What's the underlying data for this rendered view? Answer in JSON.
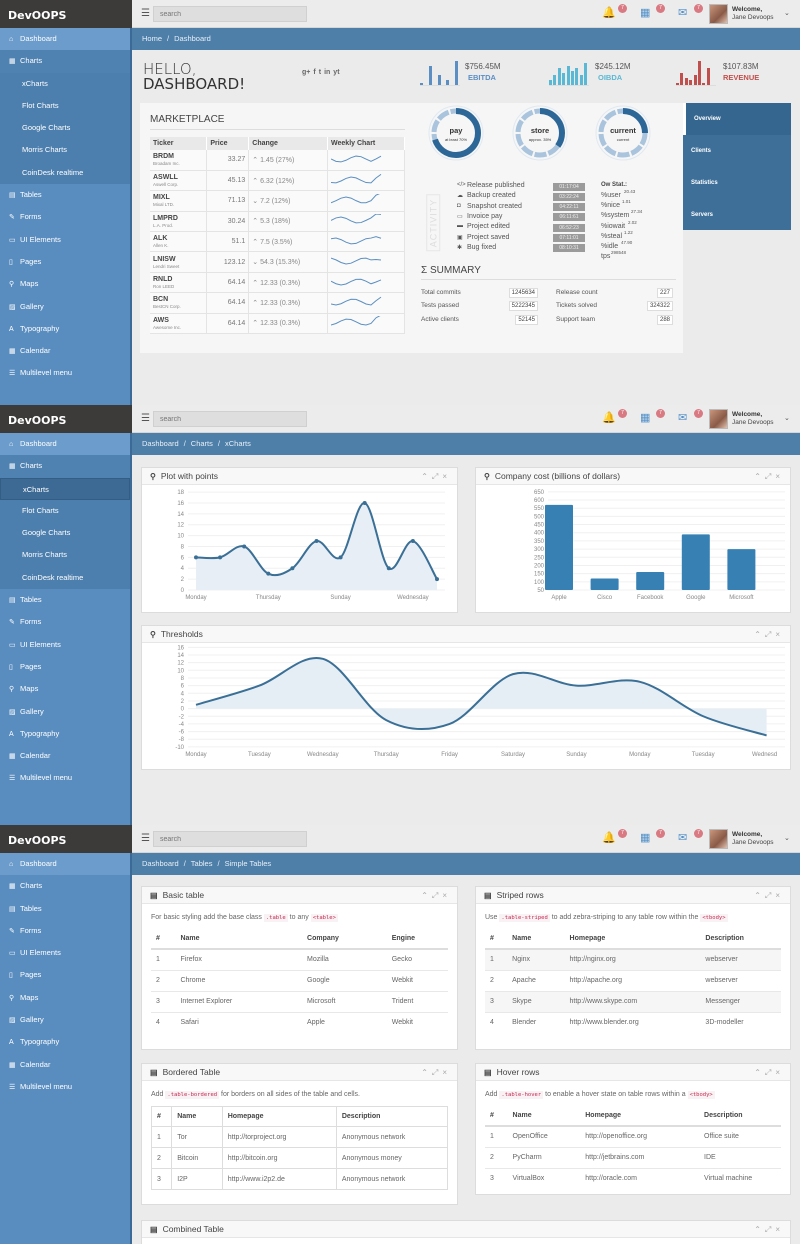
{
  "app": {
    "logo": "DevOOPS"
  },
  "header": {
    "search_placeholder": "search",
    "badges": {
      "notifications": "7",
      "calendar": "7",
      "messages": "7"
    },
    "welcome": "Welcome,",
    "user": "Jane Devoops"
  },
  "sidebar": {
    "items": [
      {
        "label": "Dashboard",
        "icon": "home-icon"
      },
      {
        "label": "Charts",
        "icon": "chart-icon"
      },
      {
        "label": "Tables",
        "icon": "table-icon"
      },
      {
        "label": "Forms",
        "icon": "pencil-icon"
      },
      {
        "label": "UI Elements",
        "icon": "desktop-icon"
      },
      {
        "label": "Pages",
        "icon": "page-icon"
      },
      {
        "label": "Maps",
        "icon": "map-marker-icon"
      },
      {
        "label": "Gallery",
        "icon": "picture-icon"
      },
      {
        "label": "Typography",
        "icon": "font-icon"
      },
      {
        "label": "Calendar",
        "icon": "calendar-icon"
      },
      {
        "label": "Multilevel menu",
        "icon": "list-icon"
      }
    ],
    "chart_submenu": [
      "xCharts",
      "Flot Charts",
      "Google Charts",
      "Morris Charts",
      "CoinDesk realtime"
    ]
  },
  "screens": [
    {
      "breadcrumb": [
        "Home",
        "Dashboard"
      ],
      "active": "Dashboard",
      "charts_expanded": true,
      "active_sub": ""
    },
    {
      "breadcrumb": [
        "Dashboard",
        "Charts",
        "xCharts"
      ],
      "active": "Dashboard",
      "charts_expanded": true,
      "active_sub": "xCharts"
    },
    {
      "breadcrumb": [
        "Dashboard",
        "Tables",
        "Simple Tables"
      ],
      "active": "Dashboard",
      "charts_expanded": false,
      "active_sub": ""
    }
  ],
  "dashboard": {
    "title_line1": "HELLO,",
    "title_line2": "DASHBOARD!",
    "social": [
      "g+",
      "f",
      "t",
      "in",
      "yt"
    ],
    "stats": [
      {
        "value": "$756.45M",
        "label": "EBITDA",
        "color": "#5b8fc4",
        "bars": [
          1,
          0,
          8,
          0,
          4,
          0,
          2,
          0,
          10
        ]
      },
      {
        "value": "$245.12M",
        "label": "OIBDA",
        "color": "#5bb8d4",
        "bars": [
          2,
          4,
          7,
          5,
          8,
          6,
          7,
          4,
          9
        ]
      },
      {
        "value": "$107.83M",
        "label": "REVENUE",
        "color": "#c0504d",
        "bars": [
          1,
          5,
          3,
          2,
          4,
          10,
          1,
          7,
          0
        ]
      }
    ],
    "marketplace": {
      "title": "MARKETPLACE",
      "columns": [
        "Ticker",
        "Price",
        "Change",
        "Weekly Chart"
      ],
      "rows": [
        {
          "ticker": "BRDM",
          "company": "Broadam Inc.",
          "price": "33.27",
          "change": "⌃ 1.45 (27%)"
        },
        {
          "ticker": "ASWLL",
          "company": "Aswell Corp.",
          "price": "45.13",
          "change": "⌃ 6.32 (12%)"
        },
        {
          "ticker": "MIXL",
          "company": "Mixal LTD.",
          "price": "71.13",
          "change": "⌄ 7.2 (12%)"
        },
        {
          "ticker": "LMPRD",
          "company": "L.A. Prod.",
          "price": "30.24",
          "change": "⌃ 5.3 (18%)"
        },
        {
          "ticker": "ALK",
          "company": "Allen K.",
          "price": "51.1",
          "change": "⌃ 7.5 (3.5%)"
        },
        {
          "ticker": "LNISW",
          "company": "Lendri Sweet",
          "price": "123.12",
          "change": "⌄ 54.3 (15.3%)"
        },
        {
          "ticker": "RNLD",
          "company": "Ron LEED",
          "price": "64.14",
          "change": "⌃ 12.33 (0.3%)"
        },
        {
          "ticker": "BCN",
          "company": "BestCN Corp.",
          "price": "64.14",
          "change": "⌃ 12.33 (0.3%)"
        },
        {
          "ticker": "AWS",
          "company": "Awesome Inc.",
          "price": "64.14",
          "change": "⌃ 12.33 (0.3%)"
        }
      ]
    },
    "donuts": [
      {
        "title": "pay",
        "subtitle": "at least 70%",
        "percent": 70
      },
      {
        "title": "store",
        "subtitle": "approx. 35%",
        "percent": 35
      },
      {
        "title": "current",
        "subtitle": "current",
        "percent": 25
      }
    ],
    "activity_label": "ACTIVITY",
    "activity": [
      {
        "icon": "code-icon",
        "glyph": "</>",
        "label": "Release published",
        "time": "01:17:04"
      },
      {
        "icon": "cloud-upload-icon",
        "glyph": "☁",
        "label": "Backup created",
        "time": "03:22:24"
      },
      {
        "icon": "camera-icon",
        "glyph": "◘",
        "label": "Snapshot created",
        "time": "04:22:11"
      },
      {
        "icon": "money-icon",
        "glyph": "▭",
        "label": "Invoice pay",
        "time": "06:11:61"
      },
      {
        "icon": "briefcase-icon",
        "glyph": "▬",
        "label": "Project edited",
        "time": "06:52:23"
      },
      {
        "icon": "save-icon",
        "glyph": "▣",
        "label": "Project saved",
        "time": "07:11:01"
      },
      {
        "icon": "bug-icon",
        "glyph": "✱",
        "label": "Bug fixed",
        "time": "08:10:31"
      }
    ],
    "os_stat": {
      "title": "Ow Stat.:",
      "items": [
        {
          "label": "%user",
          "value": "20.43"
        },
        {
          "label": "%nice",
          "value": "1.01"
        },
        {
          "label": "%system",
          "value": "27.34"
        },
        {
          "label": "%iowait",
          "value": "2.02"
        },
        {
          "label": "%steal",
          "value": "1.22"
        },
        {
          "label": "%idle",
          "value": "47.90"
        },
        {
          "label": "tps",
          "value": "298548"
        }
      ]
    },
    "summary": {
      "title": "Σ SUMMARY",
      "left": [
        {
          "label": "Total commits",
          "value": "1245634"
        },
        {
          "label": "Tests passed",
          "value": "5222345"
        },
        {
          "label": "Active clients",
          "value": "52145"
        }
      ],
      "right": [
        {
          "label": "Release count",
          "value": "227"
        },
        {
          "label": "Tickets solved",
          "value": "324322"
        },
        {
          "label": "Support team",
          "value": "288"
        }
      ]
    },
    "tabs": [
      "Overview",
      "Clients",
      "Statistics",
      "Servers"
    ]
  },
  "charts_page": {
    "card_titles": [
      "Plot with points",
      "Company cost (billions of dollars)",
      "Thresholds"
    ]
  },
  "chart_data": [
    {
      "type": "area",
      "title": "Plot with points",
      "x": [
        "Monday",
        "Tuesday",
        "Wednesday",
        "Thursday",
        "Friday",
        "Saturday",
        "Sunday",
        "Monday",
        "Tuesday",
        "Wednesday",
        "Thursday"
      ],
      "x_tick_labels": [
        "Monday",
        "Thursday",
        "Sunday",
        "Wednesday"
      ],
      "values": [
        6,
        6,
        8,
        3,
        4,
        9,
        6,
        16,
        4,
        9,
        2
      ],
      "ylim": [
        0,
        18
      ],
      "yticks": [
        0,
        2,
        4,
        6,
        8,
        10,
        12,
        14,
        16,
        18
      ],
      "grid": true,
      "color": "#3a6f96"
    },
    {
      "type": "bar",
      "title": "Company cost (billions of dollars)",
      "categories": [
        "Apple",
        "Cisco",
        "Facebook",
        "Google",
        "Microsoft"
      ],
      "values": [
        570,
        120,
        160,
        390,
        300
      ],
      "ylim": [
        50,
        650
      ],
      "yticks": [
        50,
        100,
        150,
        200,
        250,
        300,
        350,
        400,
        450,
        500,
        550,
        600,
        650
      ],
      "grid": true,
      "color": "#3680b3"
    },
    {
      "type": "area",
      "title": "Thresholds",
      "x": [
        "Monday",
        "Tuesday",
        "Wednesday",
        "Thursday",
        "Friday",
        "Saturday",
        "Sunday",
        "Monday",
        "Tuesday",
        "Wednesd"
      ],
      "values": [
        1,
        6,
        13,
        -3,
        -4,
        9,
        6,
        7,
        -2,
        -7
      ],
      "ylim": [
        -10,
        16
      ],
      "yticks": [
        -10,
        -8,
        -6,
        -4,
        -2,
        0,
        2,
        4,
        6,
        8,
        10,
        12,
        14,
        16
      ],
      "grid": true,
      "color": "#3a6f96"
    }
  ],
  "tables_page": {
    "basic": {
      "title": "Basic table",
      "desc_pre": "For basic styling add the base class",
      "code1": ".table",
      "desc_mid": "to any",
      "code2": "<table>",
      "desc_post": "",
      "columns": [
        "#",
        "Name",
        "Company",
        "Engine"
      ],
      "rows": [
        [
          "1",
          "Firefox",
          "Mozilla",
          "Gecko"
        ],
        [
          "2",
          "Chrome",
          "Google",
          "Webkit"
        ],
        [
          "3",
          "Internet Explorer",
          "Microsoft",
          "Trident"
        ],
        [
          "4",
          "Safari",
          "Apple",
          "Webkit"
        ]
      ]
    },
    "striped": {
      "title": "Striped rows",
      "desc_pre": "Use",
      "code1": ".table-striped",
      "desc_mid": "to add zebra-striping to any table row within the",
      "code2": "<tbody>",
      "desc_post": "",
      "columns": [
        "#",
        "Name",
        "Homepage",
        "Description"
      ],
      "rows": [
        [
          "1",
          "Nginx",
          "http://nginx.org",
          "webserver"
        ],
        [
          "2",
          "Apache",
          "http://apache.org",
          "webserver"
        ],
        [
          "3",
          "Skype",
          "http://www.skype.com",
          "Messenger"
        ],
        [
          "4",
          "Blender",
          "http://www.blender.org",
          "3D-modeller"
        ]
      ]
    },
    "bordered": {
      "title": "Bordered Table",
      "desc_pre": "Add",
      "code1": ".table-bordered",
      "desc_mid": "for borders on all sides of the table and cells.",
      "code2": "",
      "desc_post": "",
      "columns": [
        "#",
        "Name",
        "Homepage",
        "Description"
      ],
      "rows": [
        [
          "1",
          "Tor",
          "http://torproject.org",
          "Anonymous network"
        ],
        [
          "2",
          "Bitcoin",
          "http://bitcoin.org",
          "Anonymous money"
        ],
        [
          "3",
          "I2P",
          "http://www.i2p2.de",
          "Anonymous network"
        ]
      ]
    },
    "hover": {
      "title": "Hover rows",
      "desc_pre": "Add",
      "code1": ".table-hover",
      "desc_mid": "to enable a hover state on table rows within a",
      "code2": "<tbody>",
      "desc_post": "",
      "columns": [
        "#",
        "Name",
        "Homepage",
        "Description"
      ],
      "rows": [
        [
          "1",
          "OpenOffice",
          "http://openoffice.org",
          "Office suite"
        ],
        [
          "2",
          "PyCharm",
          "http://jetbrains.com",
          "IDE"
        ],
        [
          "3",
          "VirtualBox",
          "http://oracle.com",
          "Virtual machine"
        ]
      ]
    },
    "combined": {
      "title": "Combined Table"
    }
  }
}
